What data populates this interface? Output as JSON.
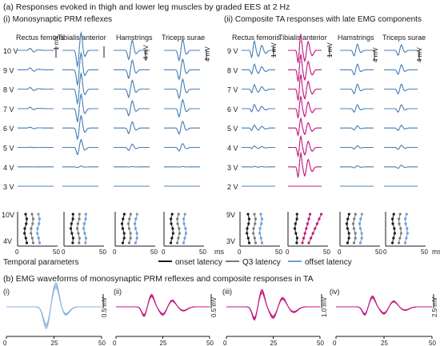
{
  "panel_a": {
    "title": "(a) Responses evoked in thigh and lower leg muscles by graded EES at 2 Hz",
    "sub_i": "(i) Monosynaptic PRM reflexes",
    "sub_ii": "(ii) Composite TA responses with late EMG components",
    "muscles": [
      "Rectus femoris",
      "Tibialis anterior",
      "Hamstrings",
      "Triceps surae"
    ],
    "intensities_i": [
      "10 V",
      "9 V",
      "8 V",
      "7 V",
      "6 V",
      "5 V",
      "4 V",
      "3 V"
    ],
    "intensities_ii": [
      "9 V",
      "8 V",
      "7 V",
      "6 V",
      "5 V",
      "4 V",
      "3 V",
      "2 V"
    ],
    "scale_labels_i": [
      "1 mV",
      "1 mV",
      "4 mV",
      "4 mV"
    ],
    "scale_labels_ii": [
      "1 mV",
      "1 mV",
      "4 mV",
      "4 mV"
    ],
    "latency_axis_i": {
      "top": "10V",
      "bottom": "4V"
    },
    "latency_axis_ii": {
      "top": "9V",
      "bottom": "3V"
    },
    "latency_ticks": [
      "0",
      "50"
    ],
    "latency_xunit": "ms",
    "legend_title": "Temporal parameters",
    "legend_items": [
      "onset latency",
      "Q3 latency",
      "offset latency"
    ]
  },
  "panel_b": {
    "title": "(b) EMG waveforms of monosynaptic PRM reflexes and composite responses in TA",
    "panels": [
      "(i)",
      "(ii)",
      "(iii)",
      "(iv)"
    ],
    "scale_labels": [
      "0.5 mV",
      "0.5 mV",
      "1.0 mV",
      "2.5 mV"
    ],
    "xticks": [
      "0",
      "25",
      "50"
    ]
  },
  "colors": {
    "trace_blue": "#4a7fb8",
    "trace_magenta": "#c2187f",
    "trace_light_blue": "#8ab4dc",
    "onset": "#1a1a1a",
    "q3": "#7a7a7a",
    "offset": "#6f9fd0"
  },
  "chart_data": [
    {
      "type": "line",
      "title": "Monosynaptic PRM reflexes",
      "series": [
        {
          "name": "Rectus femoris",
          "amplitude_relative": [
            0.3,
            0.28,
            0.25,
            0.2,
            0.12,
            0.04,
            0.01,
            0.0
          ]
        },
        {
          "name": "Tibialis anterior",
          "amplitude_relative": [
            1.0,
            0.95,
            0.9,
            0.82,
            0.7,
            0.45,
            0.05,
            0.0
          ]
        },
        {
          "name": "Hamstrings",
          "amplitude_relative": [
            0.9,
            0.85,
            0.8,
            0.7,
            0.55,
            0.3,
            0.02,
            0.0
          ]
        },
        {
          "name": "Triceps surae",
          "amplitude_relative": [
            1.0,
            0.95,
            0.9,
            0.8,
            0.6,
            0.35,
            0.03,
            0.0
          ]
        }
      ],
      "categories": [
        "10 V",
        "9 V",
        "8 V",
        "7 V",
        "6 V",
        "5 V",
        "4 V",
        "3 V"
      ]
    },
    {
      "type": "line",
      "title": "Composite TA responses with late EMG components",
      "series": [
        {
          "name": "Rectus femoris",
          "amplitude_relative": [
            0.9,
            0.55,
            0.45,
            0.4,
            0.3,
            0.15,
            0.05,
            0.0
          ]
        },
        {
          "name": "Tibialis anterior",
          "amplitude_relative": [
            1.0,
            0.95,
            0.9,
            0.75,
            0.6,
            0.7,
            0.85,
            0.0
          ]
        },
        {
          "name": "Hamstrings",
          "amplitude_relative": [
            0.55,
            0.5,
            0.45,
            0.35,
            0.2,
            0.15,
            0.1,
            0.0
          ]
        },
        {
          "name": "Triceps surae",
          "amplitude_relative": [
            0.5,
            0.45,
            0.45,
            0.35,
            0.25,
            0.2,
            0.15,
            0.0
          ]
        }
      ],
      "categories": [
        "9 V",
        "8 V",
        "7 V",
        "6 V",
        "5 V",
        "4 V",
        "3 V",
        "2 V"
      ]
    },
    {
      "type": "line",
      "title": "EMG waveforms (b)",
      "x_unit": "ms",
      "xlim": [
        0,
        50
      ],
      "panels": [
        {
          "label": "(i)",
          "scale": "0.5 mV"
        },
        {
          "label": "(ii)",
          "scale": "0.5 mV"
        },
        {
          "label": "(iii)",
          "scale": "1.0 mV"
        },
        {
          "label": "(iv)",
          "scale": "2.5 mV"
        }
      ]
    }
  ]
}
